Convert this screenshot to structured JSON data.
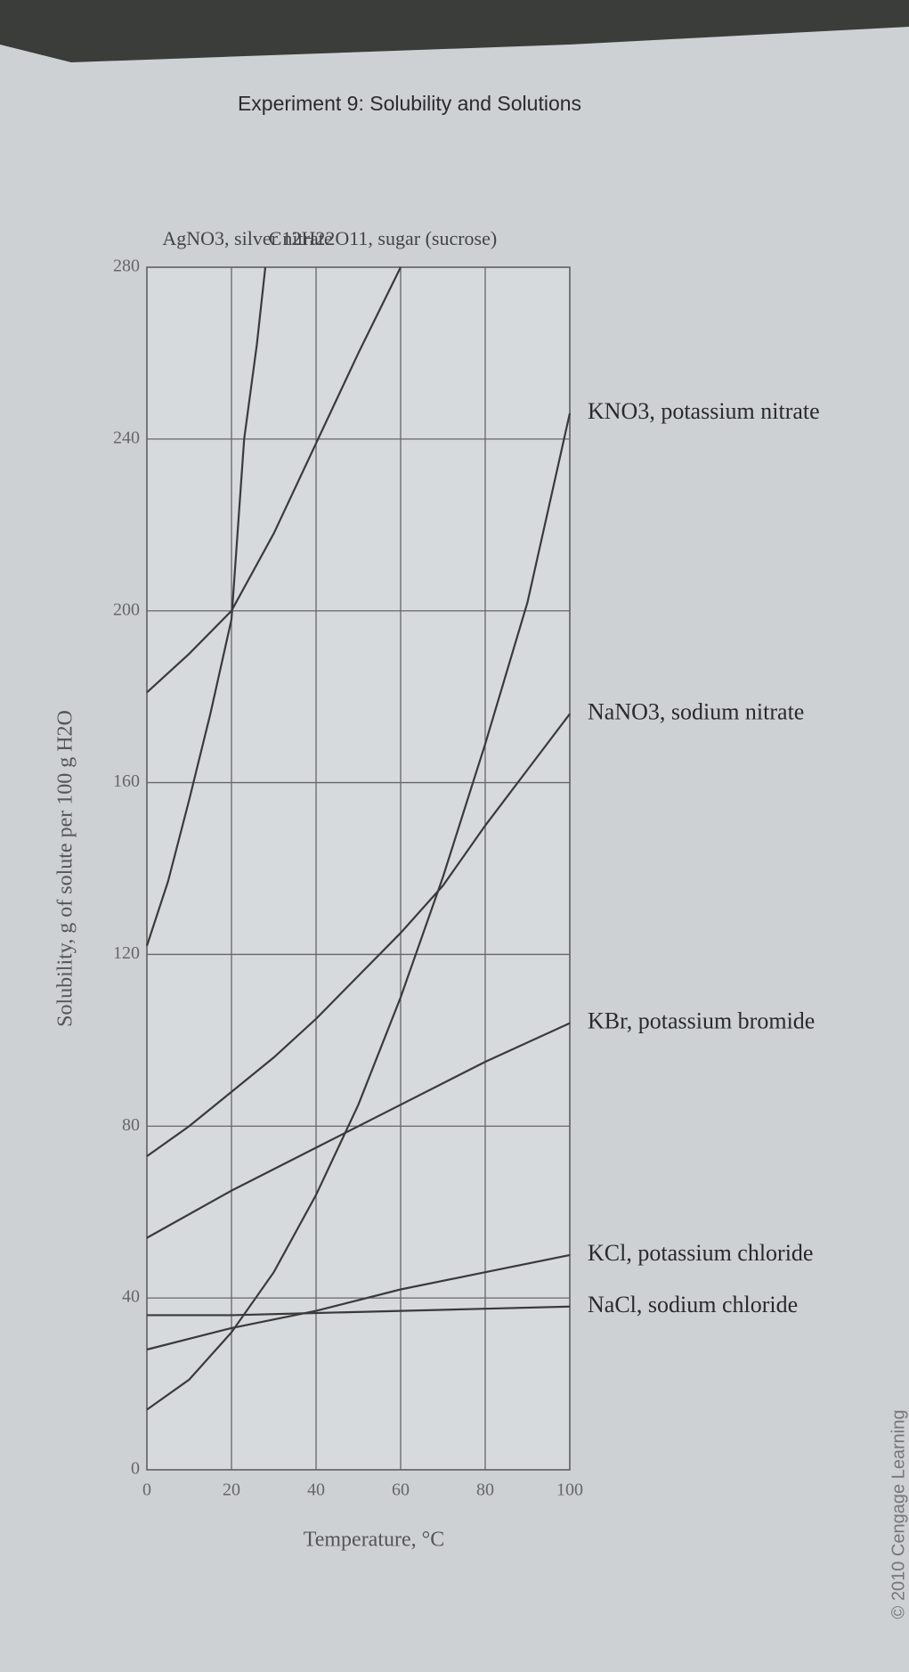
{
  "chart_data": {
    "type": "line",
    "header": "Experiment 9: Solubility and Solutions",
    "xlabel": "Temperature, °C",
    "ylabel": "Solubility, g of solute per 100 g H2O",
    "credit": "© 2010 Cengage Learning",
    "xlim": [
      0,
      100
    ],
    "xticks": [
      0,
      20,
      40,
      60,
      80,
      100
    ],
    "ylim": [
      0,
      280
    ],
    "yticks": [
      0,
      40,
      80,
      120,
      160,
      200,
      240,
      280
    ],
    "grid": true,
    "series": [
      {
        "name": "AgNO3, silver nitrate",
        "color": "#3a3a3a",
        "x": [
          0,
          5,
          10,
          15,
          20,
          23,
          26,
          28
        ],
        "values": [
          122,
          137,
          156,
          176,
          198,
          240,
          262,
          280
        ]
      },
      {
        "name": "C12H22O11, sugar (sucrose)",
        "color": "#3a3a3a",
        "x": [
          0,
          10,
          20,
          30,
          40,
          50,
          60
        ],
        "values": [
          181,
          190,
          200,
          218,
          239,
          260,
          280
        ]
      },
      {
        "name": "KNO3, potassium nitrate",
        "color": "#3a3a3a",
        "x": [
          0,
          10,
          20,
          30,
          40,
          50,
          60,
          70,
          80,
          90,
          100
        ],
        "values": [
          14,
          21,
          32,
          46,
          64,
          85,
          110,
          138,
          169,
          202,
          246
        ]
      },
      {
        "name": "NaNO3, sodium nitrate",
        "color": "#3a3a3a",
        "x": [
          0,
          10,
          20,
          30,
          40,
          50,
          60,
          70,
          80,
          90,
          100
        ],
        "values": [
          73,
          80,
          88,
          96,
          105,
          115,
          125,
          136,
          150,
          163,
          176
        ]
      },
      {
        "name": "KBr, potassium bromide",
        "color": "#3a3a3a",
        "x": [
          0,
          20,
          40,
          60,
          80,
          100
        ],
        "values": [
          54,
          65,
          75,
          85,
          95,
          104
        ]
      },
      {
        "name": "KCl, potassium chloride",
        "color": "#3a3a3a",
        "x": [
          0,
          20,
          40,
          60,
          80,
          100
        ],
        "values": [
          28,
          33,
          37,
          42,
          46,
          50
        ]
      },
      {
        "name": "NaCl, sodium chloride",
        "color": "#3a3a3a",
        "x": [
          0,
          20,
          40,
          60,
          80,
          100
        ],
        "values": [
          36,
          36,
          36.5,
          37,
          37.5,
          38
        ]
      }
    ]
  }
}
